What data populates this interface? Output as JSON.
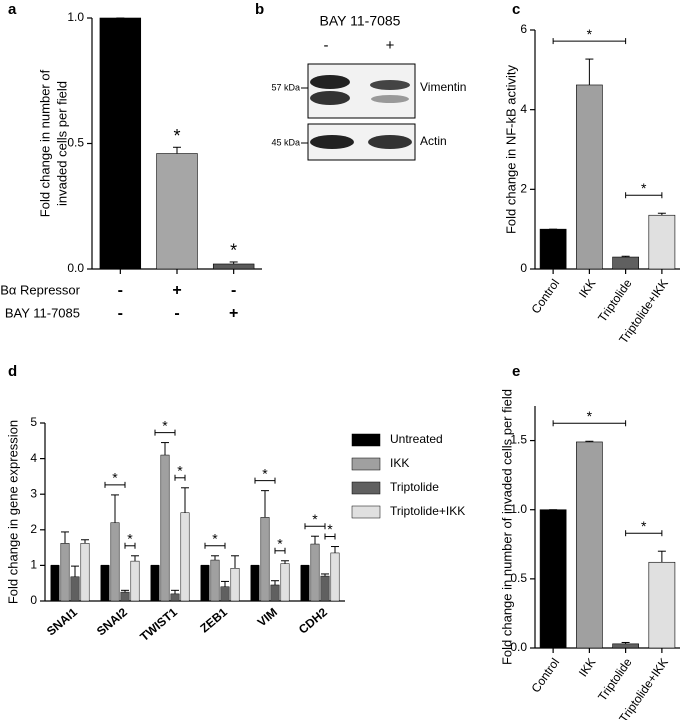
{
  "chart_data": [
    {
      "type": "bar",
      "panel": "a",
      "ylabel": [
        "Fold change in number of",
        "invaded cells per field"
      ],
      "values": [
        1,
        0.46,
        0.02
      ],
      "errors": [
        0,
        0.025,
        0.008
      ],
      "colors": [
        "#000000",
        "#a6a6a6",
        "#5a5a5a"
      ],
      "significance": [
        null,
        "*",
        "*"
      ],
      "conditions": [
        {
          "name": "IKBα Repressor",
          "signs": [
            "-",
            "+",
            "-"
          ]
        },
        {
          "name": "BAY 11-7085",
          "signs": [
            "-",
            "-",
            "+"
          ]
        }
      ],
      "ylim": [
        0,
        1
      ],
      "yticks": [
        {
          "value": 0,
          "label": "0.0"
        },
        0.5,
        {
          "value": 1,
          "label": "1.0"
        }
      ]
    },
    {
      "type": "bar",
      "panel": "c",
      "ylabel": "Fold change in NF-kB activity",
      "categories": [
        "Control",
        "IKK",
        "Triptolide",
        "Triptolide+IKK"
      ],
      "values": [
        1,
        4.62,
        0.3,
        1.35
      ],
      "errors": [
        0,
        0.65,
        0.02,
        0.05
      ],
      "colors": [
        "#000000",
        "#a0a0a0",
        "#606060",
        "#e0e0e0"
      ],
      "significance": [
        {
          "label": "*",
          "between": [
            "Control",
            "Triptolide"
          ]
        },
        {
          "label": "*",
          "between": [
            "Triptolide",
            "Triptolide+IKK"
          ]
        }
      ],
      "ylim": [
        0,
        6
      ],
      "yticks": [
        0,
        2,
        4,
        6
      ]
    },
    {
      "type": "grouped_bar",
      "panel": "d",
      "ylabel": "Fold change in gene expression",
      "categories": [
        "SNAI1",
        "SNAI2",
        "TWIST1",
        "ZEB1",
        "VIM",
        "CDH2"
      ],
      "series": [
        {
          "name": "Untreated",
          "color": "#000000",
          "values": [
            1,
            1,
            1,
            1,
            1,
            1
          ],
          "errors": [
            0,
            0,
            0,
            0,
            0,
            0
          ]
        },
        {
          "name": "IKK",
          "color": "#a0a0a0",
          "values": [
            1.62,
            2.2,
            4.1,
            1.15,
            2.35,
            1.6
          ],
          "errors": [
            0.32,
            0.78,
            0.35,
            0.12,
            0.75,
            0.22
          ]
        },
        {
          "name": "Triptolide",
          "color": "#606060",
          "values": [
            0.68,
            0.25,
            0.2,
            0.4,
            0.45,
            0.7
          ],
          "errors": [
            0.3,
            0.05,
            0.1,
            0.15,
            0.12,
            0.06
          ]
        },
        {
          "name": "Triptolide+IKK",
          "color": "#e0e0e0",
          "values": [
            1.62,
            1.12,
            2.48,
            0.92,
            1.05,
            1.35
          ],
          "errors": [
            0.1,
            0.15,
            0.7,
            0.35,
            0.08,
            0.18
          ]
        }
      ],
      "significance": [
        {
          "category": "SNAI2",
          "label": "*",
          "between": [
            "Untreated",
            "Triptolide"
          ]
        },
        {
          "category": "SNAI2",
          "label": "*",
          "between": [
            "Triptolide",
            "Triptolide+IKK"
          ]
        },
        {
          "category": "TWIST1",
          "label": "*",
          "between": [
            "Untreated",
            "Triptolide"
          ]
        },
        {
          "category": "TWIST1",
          "label": "*",
          "between": [
            "Triptolide",
            "Triptolide+IKK"
          ]
        },
        {
          "category": "ZEB1",
          "label": "*",
          "between": [
            "Untreated",
            "Triptolide"
          ]
        },
        {
          "category": "VIM",
          "label": "*",
          "between": [
            "Untreated",
            "Triptolide"
          ]
        },
        {
          "category": "VIM",
          "label": "*",
          "between": [
            "Triptolide",
            "Triptolide+IKK"
          ]
        },
        {
          "category": "CDH2",
          "label": "*",
          "between": [
            "Untreated",
            "Triptolide"
          ]
        },
        {
          "category": "CDH2",
          "label": "*",
          "between": [
            "Triptolide",
            "Triptolide+IKK"
          ]
        }
      ],
      "ylim": [
        0,
        5
      ],
      "yticks": [
        0,
        1,
        2,
        3,
        4,
        5
      ]
    },
    {
      "type": "bar",
      "panel": "e",
      "ylabel": "Fold change in number of invaded cells per field",
      "categories": [
        "Control",
        "IKK",
        "Triptolide",
        "Triptolide+IKK"
      ],
      "values": [
        1,
        1.49,
        0.03,
        0.62
      ],
      "errors": [
        0,
        0.005,
        0.01,
        0.08
      ],
      "colors": [
        "#000000",
        "#a0a0a0",
        "#606060",
        "#e0e0e0"
      ],
      "significance": [
        {
          "label": "*",
          "between": [
            "Control",
            "Triptolide"
          ]
        },
        {
          "label": "*",
          "between": [
            "Triptolide",
            "Triptolide+IKK"
          ]
        }
      ],
      "ylim": [
        0,
        1.75
      ],
      "yticks": [
        {
          "value": 0,
          "label": "0.0"
        },
        0.5,
        {
          "value": 1,
          "label": "1.0"
        },
        1.5
      ]
    }
  ],
  "blot": {
    "panel": "b",
    "treatment": "BAY 11-7085",
    "lanes": [
      "-",
      "+"
    ],
    "bands": [
      {
        "marker": "57 kDa",
        "protein": "Vimentin"
      },
      {
        "marker": "45 kDa",
        "protein": "Actin"
      }
    ]
  }
}
